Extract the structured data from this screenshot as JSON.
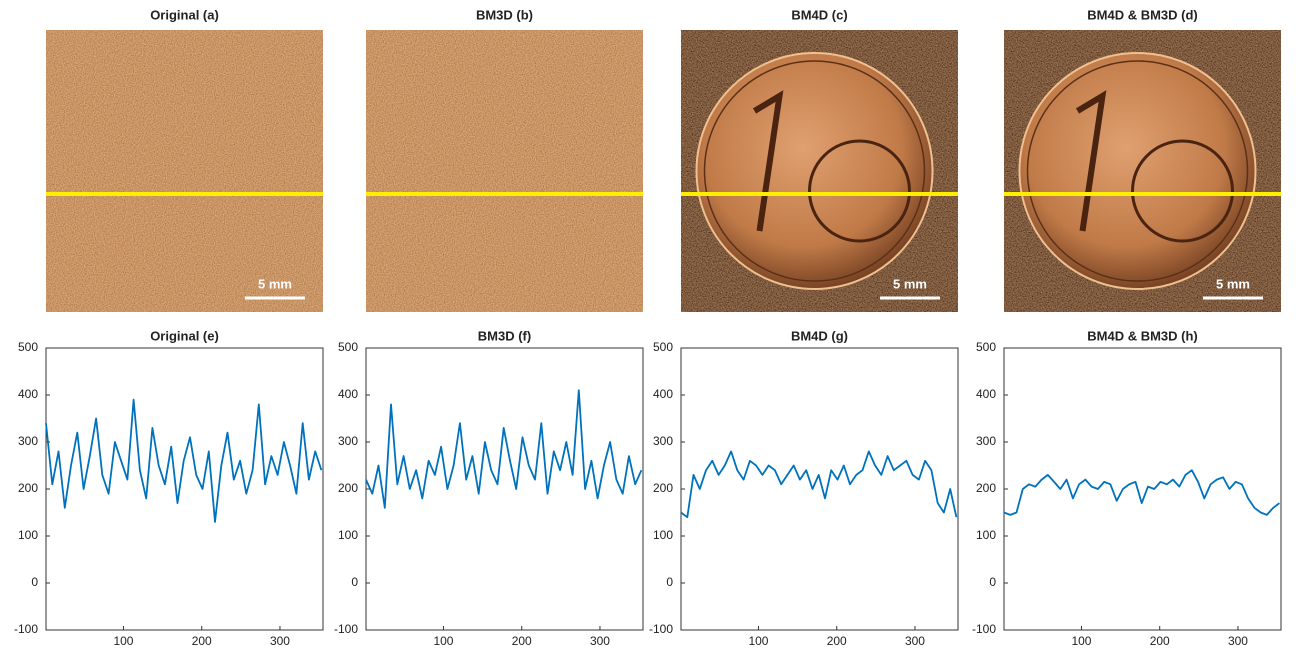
{
  "images": [
    {
      "title": "Original (a)",
      "scale_bar": "5 mm"
    },
    {
      "title": "BM3D (b)"
    },
    {
      "title": "BM4D (c)",
      "scale_bar": "5 mm"
    },
    {
      "title": "BM4D & BM3D (d)",
      "scale_bar": "5 mm"
    }
  ],
  "chart_data": [
    {
      "type": "line",
      "title": "Original (e)",
      "x": [
        1,
        9,
        17,
        25,
        33,
        41,
        49,
        57,
        65,
        73,
        81,
        89,
        97,
        105,
        113,
        121,
        129,
        137,
        145,
        153,
        161,
        169,
        177,
        185,
        193,
        201,
        209,
        217,
        225,
        233,
        241,
        249,
        257,
        265,
        273,
        281,
        289,
        297,
        305,
        313,
        321,
        329,
        337,
        345,
        353
      ],
      "series": [
        {
          "color": "#0072bd",
          "values": [
            340,
            210,
            280,
            160,
            250,
            320,
            200,
            270,
            350,
            230,
            190,
            300,
            260,
            220,
            390,
            240,
            180,
            330,
            250,
            210,
            290,
            170,
            260,
            310,
            230,
            200,
            280,
            130,
            250,
            320,
            220,
            260,
            190,
            240,
            380,
            210,
            270,
            230,
            300,
            250,
            190,
            340,
            220,
            280,
            240
          ]
        }
      ],
      "xlim": [
        1,
        355
      ],
      "xticks": [
        100,
        200,
        300
      ],
      "ylim": [
        -100,
        500
      ],
      "yticks": [
        -100,
        0,
        100,
        200,
        300,
        400,
        500
      ]
    },
    {
      "type": "line",
      "title": "BM3D (f)",
      "x": [
        1,
        9,
        17,
        25,
        33,
        41,
        49,
        57,
        65,
        73,
        81,
        89,
        97,
        105,
        113,
        121,
        129,
        137,
        145,
        153,
        161,
        169,
        177,
        185,
        193,
        201,
        209,
        217,
        225,
        233,
        241,
        249,
        257,
        265,
        273,
        281,
        289,
        297,
        305,
        313,
        321,
        329,
        337,
        345,
        353
      ],
      "series": [
        {
          "color": "#0072bd",
          "values": [
            220,
            190,
            250,
            160,
            380,
            210,
            270,
            200,
            240,
            180,
            260,
            230,
            290,
            200,
            250,
            340,
            220,
            270,
            190,
            300,
            240,
            210,
            330,
            260,
            200,
            310,
            250,
            220,
            340,
            190,
            280,
            240,
            300,
            230,
            410,
            200,
            260,
            180,
            250,
            300,
            220,
            190,
            270,
            210,
            240
          ]
        }
      ],
      "xlim": [
        1,
        355
      ],
      "xticks": [
        100,
        200,
        300
      ],
      "ylim": [
        -100,
        500
      ],
      "yticks": [
        -100,
        0,
        100,
        200,
        300,
        400,
        500
      ]
    },
    {
      "type": "line",
      "title": "BM4D (g)",
      "x": [
        1,
        9,
        17,
        25,
        33,
        41,
        49,
        57,
        65,
        73,
        81,
        89,
        97,
        105,
        113,
        121,
        129,
        137,
        145,
        153,
        161,
        169,
        177,
        185,
        193,
        201,
        209,
        217,
        225,
        233,
        241,
        249,
        257,
        265,
        273,
        281,
        289,
        297,
        305,
        313,
        321,
        329,
        337,
        345,
        353
      ],
      "series": [
        {
          "color": "#0072bd",
          "values": [
            150,
            140,
            230,
            200,
            240,
            260,
            230,
            250,
            280,
            240,
            220,
            260,
            250,
            230,
            250,
            240,
            210,
            230,
            250,
            220,
            240,
            200,
            230,
            180,
            240,
            220,
            250,
            210,
            230,
            240,
            280,
            250,
            230,
            270,
            240,
            250,
            260,
            230,
            220,
            260,
            240,
            170,
            150,
            200,
            140
          ]
        }
      ],
      "xlim": [
        1,
        355
      ],
      "xticks": [
        100,
        200,
        300
      ],
      "ylim": [
        -100,
        500
      ],
      "yticks": [
        -100,
        0,
        100,
        200,
        300,
        400,
        500
      ]
    },
    {
      "type": "line",
      "title": "BM4D & BM3D (h)",
      "x": [
        1,
        9,
        17,
        25,
        33,
        41,
        49,
        57,
        65,
        73,
        81,
        89,
        97,
        105,
        113,
        121,
        129,
        137,
        145,
        153,
        161,
        169,
        177,
        185,
        193,
        201,
        209,
        217,
        225,
        233,
        241,
        249,
        257,
        265,
        273,
        281,
        289,
        297,
        305,
        313,
        321,
        329,
        337,
        345,
        353
      ],
      "series": [
        {
          "color": "#0072bd",
          "values": [
            150,
            145,
            150,
            200,
            210,
            205,
            220,
            230,
            215,
            200,
            220,
            180,
            210,
            220,
            205,
            200,
            215,
            210,
            175,
            200,
            210,
            215,
            170,
            205,
            200,
            215,
            210,
            220,
            205,
            230,
            240,
            215,
            180,
            210,
            220,
            225,
            200,
            215,
            210,
            180,
            160,
            150,
            145,
            160,
            170
          ]
        }
      ],
      "xlim": [
        1,
        355
      ],
      "xticks": [
        100,
        200,
        300
      ],
      "ylim": [
        -100,
        500
      ],
      "yticks": [
        -100,
        0,
        100,
        200,
        300,
        400,
        500
      ]
    }
  ]
}
